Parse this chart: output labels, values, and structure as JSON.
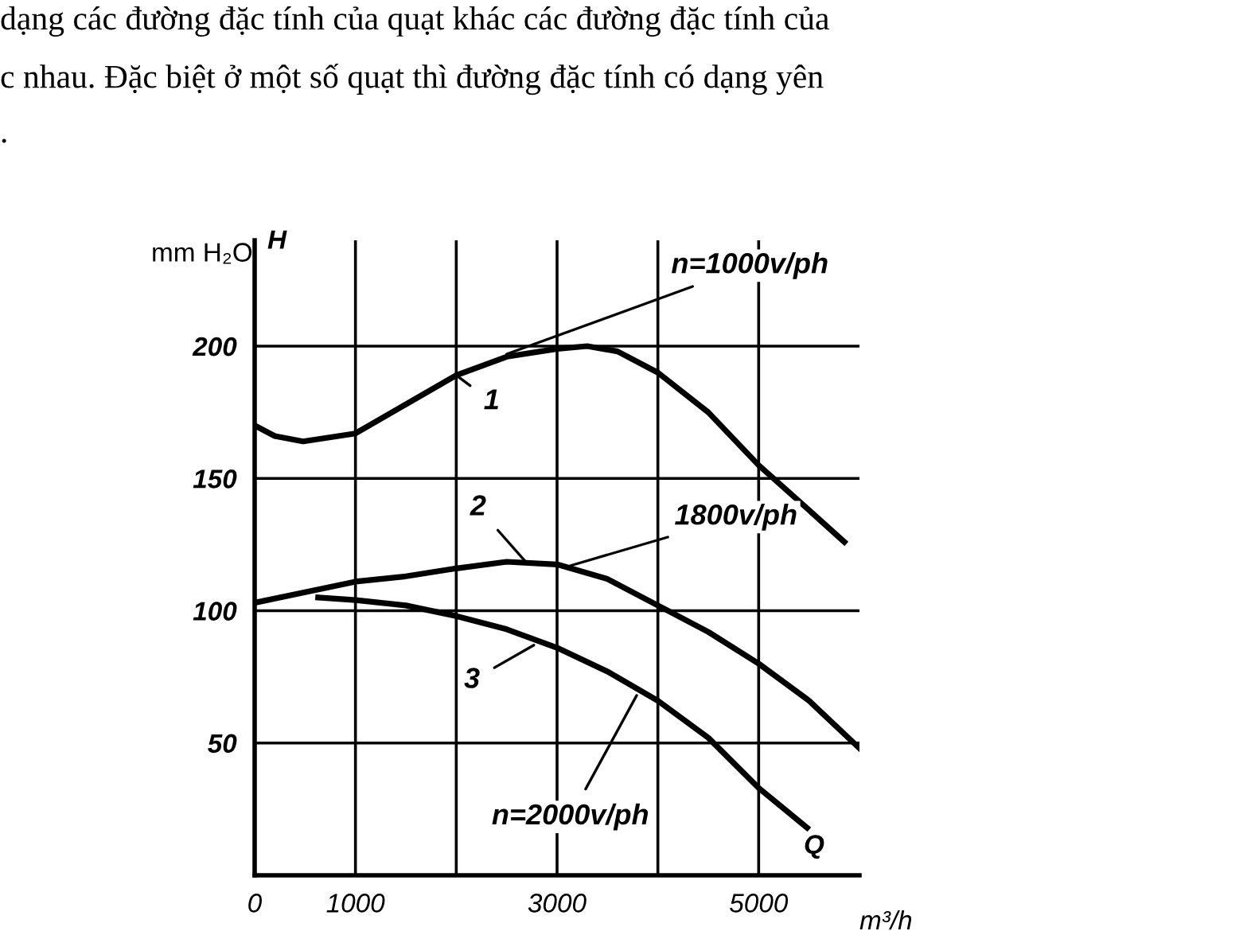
{
  "chart_data": {
    "type": "line",
    "annotations": [
      "dạng các đường đặc tính của quạt khác các đường đặc tính của",
      "c nhau. Đặc biệt ở một số quạt thì đường đặc tính có dạng yên",
      ".",
      "H",
      "Q",
      {
        "text": "n=1000v/ph",
        "x": 2500,
        "y": 197
      },
      {
        "text": "1",
        "x": 2000,
        "y": 189
      },
      {
        "text": "2",
        "x": 2700,
        "y": 118
      },
      {
        "text": "1800v/ph",
        "x": 3130,
        "y": 117
      },
      {
        "text": "3",
        "x": 2770,
        "y": 87
      },
      {
        "text": "n=2000v/ph",
        "x": 3790,
        "y": 68
      }
    ],
    "xlabel": "m³/h",
    "ylabel": "mm H₂O",
    "xlim": [
      0,
      6000
    ],
    "ylim": [
      0,
      240
    ],
    "xticks": [
      0,
      1000,
      {
        "value": 2000,
        "label": null
      },
      3000,
      {
        "value": 4000,
        "label": null
      },
      5000
    ],
    "yticks": [
      50,
      100,
      150,
      200
    ],
    "grid": true,
    "marker": "none",
    "line_style": "solid",
    "series": [
      {
        "color": "#000000",
        "x": [
          0,
          200,
          480,
          1000,
          1500,
          2000,
          2500,
          3000,
          3300,
          3600,
          4000,
          4500,
          5000,
          5500,
          5850
        ],
        "values": [
          170,
          166,
          164,
          167,
          178,
          189,
          196,
          199,
          200,
          198,
          190,
          175,
          155,
          138,
          126
        ]
      },
      {
        "color": "#000000",
        "x": [
          0,
          500,
          1000,
          1500,
          2000,
          2500,
          3000,
          3500,
          4000,
          4500,
          5000,
          5500,
          6000
        ],
        "values": [
          103,
          107,
          111,
          113,
          116,
          118.5,
          117.5,
          112,
          102,
          92,
          80,
          66,
          48
        ]
      },
      {
        "color": "#000000",
        "x": [
          630,
          1000,
          1500,
          2000,
          2500,
          3000,
          3500,
          4000,
          4500,
          5000,
          5480
        ],
        "values": [
          105,
          104,
          102,
          98,
          93,
          86,
          77,
          66,
          52,
          33,
          18
        ]
      }
    ]
  }
}
